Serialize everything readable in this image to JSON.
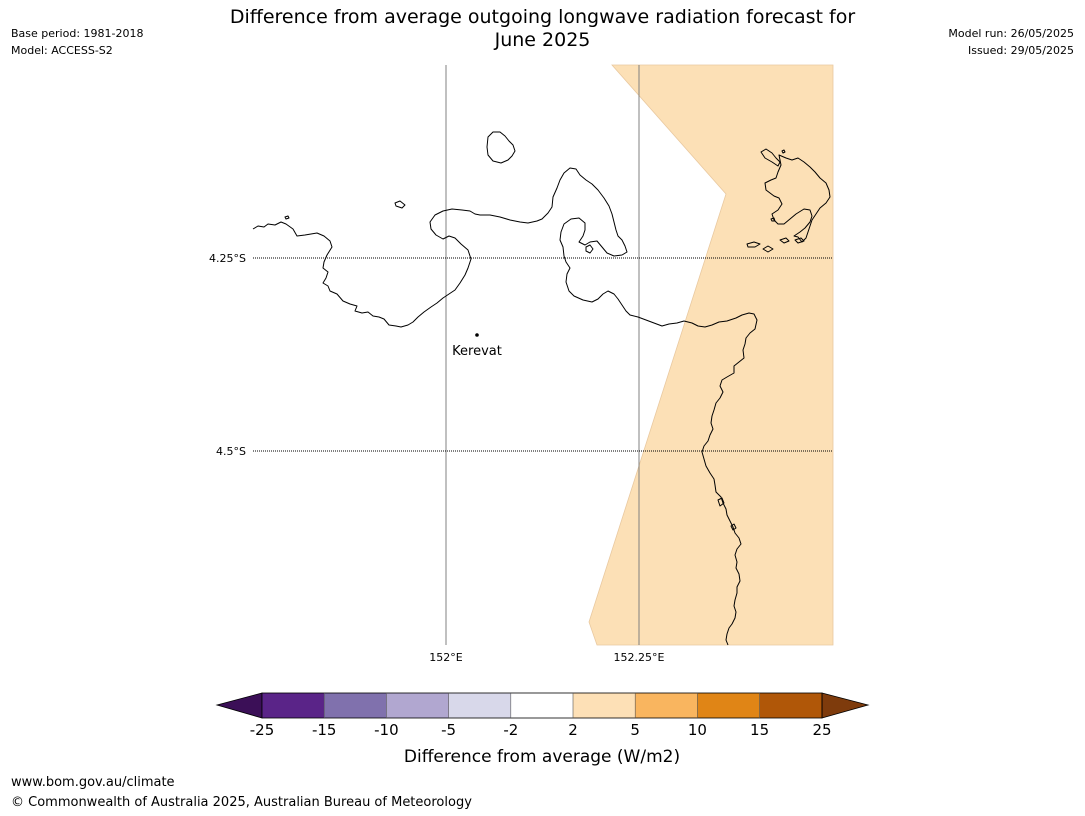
{
  "header": {
    "title_line1": "Difference from average outgoing longwave radiation forecast for",
    "title_line2": "June 2025",
    "base_period": "Base period: 1981-2018",
    "model": "Model: ACCESS-S2",
    "model_run": "Model run: 26/05/2025",
    "issued": "Issued: 29/05/2025"
  },
  "map": {
    "lat_labels": [
      "4.25°S",
      "4.5°S"
    ],
    "lon_labels": [
      "152°E",
      "152.25°E"
    ],
    "place_label": "Kerevat",
    "positive_fill_color": "#fce0b6"
  },
  "legend": {
    "tick_labels": [
      "-25",
      "-15",
      "-10",
      "-5",
      "-2",
      "2",
      "5",
      "10",
      "15",
      "25"
    ],
    "colors": [
      "#3b0f57",
      "#5a2488",
      "#8071ad",
      "#b1a7d0",
      "#d8d8ea",
      "#ffffff",
      "#fde0b6",
      "#f9b55f",
      "#e08516",
      "#b05708",
      "#7e3b0c"
    ],
    "label": "Difference from average (W/m2)"
  },
  "footer": {
    "url": "www.bom.gov.au/climate",
    "copyright": "© Commonwealth of Australia 2025, Australian Bureau of Meteorology"
  }
}
